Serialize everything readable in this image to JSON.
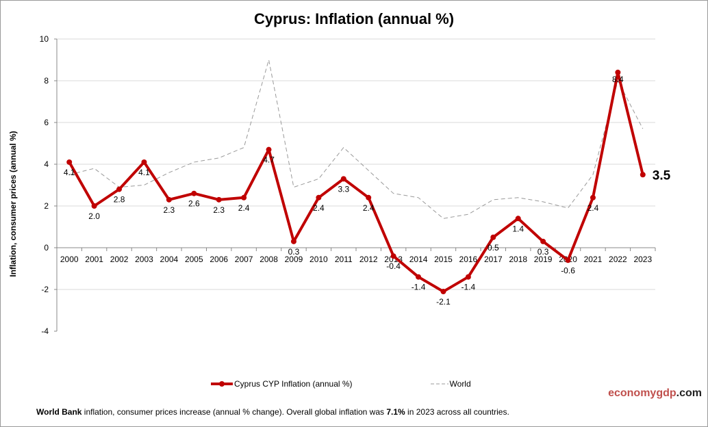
{
  "chart_data": {
    "type": "line",
    "title": "Cyprus: Inflation (annual %)",
    "ylabel": "Inflation, consumer prices (annual %)",
    "xlabel": "",
    "ylim": [
      -4,
      10
    ],
    "yticks": [
      -4,
      -2,
      0,
      2,
      4,
      6,
      8,
      10
    ],
    "grid": true,
    "legend": "bottom",
    "categories": [
      "2000",
      "2001",
      "2002",
      "2003",
      "2004",
      "2005",
      "2006",
      "2007",
      "2008",
      "2009",
      "2010",
      "2011",
      "2012",
      "2013",
      "2014",
      "2015",
      "2016",
      "2017",
      "2018",
      "2019",
      "2020",
      "2021",
      "2022",
      "2023"
    ],
    "series": [
      {
        "name": "Cyprus CYP Inflation (annual %)",
        "color": "#c00000",
        "values": [
          4.1,
          2.0,
          2.8,
          4.1,
          2.3,
          2.6,
          2.3,
          2.4,
          4.7,
          0.3,
          2.4,
          3.3,
          2.4,
          -0.4,
          -1.4,
          -2.1,
          -1.4,
          0.5,
          1.4,
          0.3,
          -0.6,
          2.4,
          8.4,
          3.5
        ]
      },
      {
        "name": "World",
        "color": "#999999",
        "values": [
          3.5,
          3.8,
          2.9,
          3.0,
          3.6,
          4.1,
          4.3,
          4.8,
          9.0,
          2.9,
          3.3,
          4.8,
          3.7,
          2.6,
          2.4,
          1.4,
          1.6,
          2.3,
          2.4,
          2.2,
          1.9,
          3.5,
          8.0,
          5.7
        ]
      }
    ],
    "last_value_label": "3.5"
  },
  "brand": {
    "part1": "economy",
    "part2": "gdp",
    "part3": ".com"
  },
  "footer": {
    "source": "World Bank",
    "text1": " inflation, consumer prices increase (annual % change).   Overall global inflation was ",
    "value": "7.1%",
    "text2": " in 2023 across all countries."
  }
}
